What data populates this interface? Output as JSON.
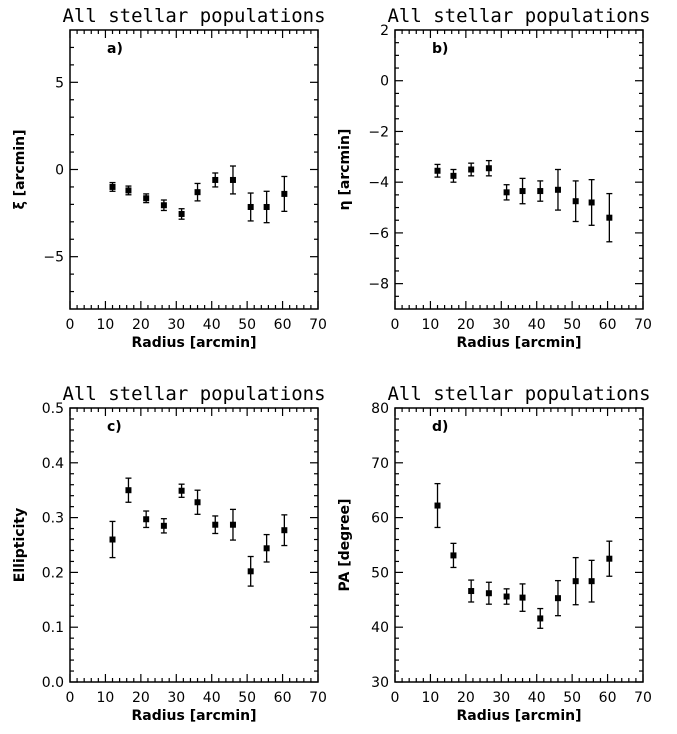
{
  "chart_data": [
    {
      "type": "scatter",
      "title": "All stellar populations",
      "panel_label": "a)",
      "xlabel": "Radius [arcmin]",
      "ylabel": "ξ [arcmin]",
      "xlim": [
        0,
        70
      ],
      "ylim": [
        -8,
        8
      ],
      "xticks": [
        0,
        10,
        20,
        30,
        40,
        50,
        60,
        70
      ],
      "yticks": [
        -5,
        0,
        5
      ],
      "yminor_step": 1,
      "grid": false,
      "x": [
        12,
        16.5,
        21.5,
        26.5,
        31.5,
        36,
        41,
        46,
        51,
        55.5,
        60.5
      ],
      "y": [
        -1.0,
        -1.2,
        -1.65,
        -2.05,
        -2.55,
        -1.3,
        -0.6,
        -0.6,
        -2.15,
        -2.15,
        -1.4
      ],
      "yerr": [
        0.25,
        0.25,
        0.25,
        0.3,
        0.3,
        0.5,
        0.4,
        0.8,
        0.8,
        0.9,
        1.0
      ]
    },
    {
      "type": "scatter",
      "title": "All stellar populations",
      "panel_label": "b)",
      "xlabel": "Radius [arcmin]",
      "ylabel": "η [arcmin]",
      "xlim": [
        0,
        70
      ],
      "ylim": [
        -9,
        2
      ],
      "xticks": [
        0,
        10,
        20,
        30,
        40,
        50,
        60,
        70
      ],
      "yticks": [
        -8,
        -6,
        -4,
        -2,
        0,
        2
      ],
      "yminor_step": 0.5,
      "grid": false,
      "x": [
        12,
        16.5,
        21.5,
        26.5,
        31.5,
        36,
        41,
        46,
        51,
        55.5,
        60.5
      ],
      "y": [
        -3.55,
        -3.75,
        -3.5,
        -3.45,
        -4.4,
        -4.35,
        -4.35,
        -4.3,
        -4.75,
        -4.8,
        -5.4
      ],
      "yerr": [
        0.25,
        0.25,
        0.25,
        0.3,
        0.3,
        0.5,
        0.4,
        0.8,
        0.8,
        0.9,
        0.95
      ]
    },
    {
      "type": "scatter",
      "title": "All stellar populations",
      "panel_label": "c)",
      "xlabel": "Radius [arcmin]",
      "ylabel": "Ellipticity",
      "xlim": [
        0,
        70
      ],
      "ylim": [
        0,
        0.5
      ],
      "xticks": [
        0,
        10,
        20,
        30,
        40,
        50,
        60,
        70
      ],
      "yticks": [
        0.0,
        0.1,
        0.2,
        0.3,
        0.4,
        0.5
      ],
      "ytick_labels": [
        "0.0",
        "0.1",
        "0.2",
        "0.3",
        "0.4",
        "0.5"
      ],
      "yminor_step": 0.02,
      "grid": false,
      "x": [
        12,
        16.5,
        21.5,
        26.5,
        31.5,
        36,
        41,
        46,
        51,
        55.5,
        60.5
      ],
      "y": [
        0.26,
        0.35,
        0.297,
        0.285,
        0.349,
        0.328,
        0.287,
        0.287,
        0.202,
        0.244,
        0.277
      ],
      "yerr": [
        0.033,
        0.022,
        0.015,
        0.013,
        0.012,
        0.022,
        0.016,
        0.028,
        0.027,
        0.025,
        0.028
      ]
    },
    {
      "type": "scatter",
      "title": "All stellar populations",
      "panel_label": "d)",
      "xlabel": "Radius [arcmin]",
      "ylabel": "PA [degree]",
      "xlim": [
        0,
        70
      ],
      "ylim": [
        30,
        80
      ],
      "xticks": [
        0,
        10,
        20,
        30,
        40,
        50,
        60,
        70
      ],
      "yticks": [
        30,
        40,
        50,
        60,
        70,
        80
      ],
      "yminor_step": 2,
      "grid": false,
      "x": [
        12,
        16.5,
        21.5,
        26.5,
        31.5,
        36,
        41,
        46,
        51,
        55.5,
        60.5
      ],
      "y": [
        62.2,
        53.1,
        46.6,
        46.2,
        45.6,
        45.4,
        41.6,
        45.3,
        48.4,
        48.4,
        52.5
      ],
      "yerr": [
        4.0,
        2.2,
        2.0,
        2.0,
        1.4,
        2.5,
        1.8,
        3.2,
        4.3,
        3.8,
        3.2
      ]
    }
  ]
}
